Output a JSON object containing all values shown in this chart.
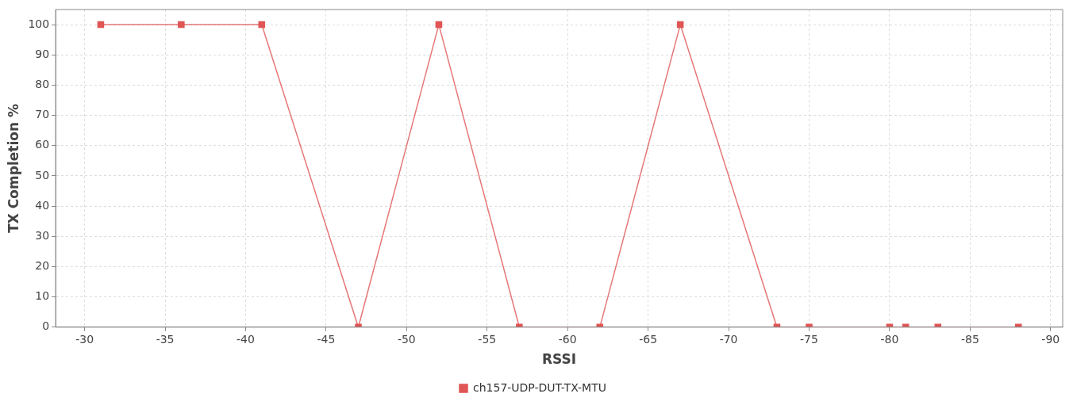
{
  "chart_data": {
    "type": "line",
    "xlabel": "RSSI",
    "ylabel": "TX Completion %",
    "x": [
      -31,
      -36,
      -41,
      -47,
      -52,
      -57,
      -62,
      -67,
      -73,
      -75,
      -80,
      -81,
      -83,
      -88
    ],
    "series": [
      {
        "name": "ch157-UDP-DUT-TX-MTU",
        "color": "#e05555",
        "values": [
          100,
          100,
          100,
          0,
          100,
          0,
          0,
          100,
          0,
          0,
          0,
          0,
          0,
          0
        ]
      }
    ],
    "xlim": [
      -28.2,
      -90.75
    ],
    "ylim": [
      0,
      105
    ],
    "xticks": [
      -30,
      -35,
      -40,
      -45,
      -50,
      -55,
      -60,
      -65,
      -70,
      -75,
      -80,
      -85,
      -90
    ],
    "yticks": [
      0,
      10,
      20,
      30,
      40,
      50,
      60,
      70,
      80,
      90,
      100
    ],
    "grid": true,
    "legend": "bottom",
    "marker": "square",
    "line_style": "solid"
  }
}
